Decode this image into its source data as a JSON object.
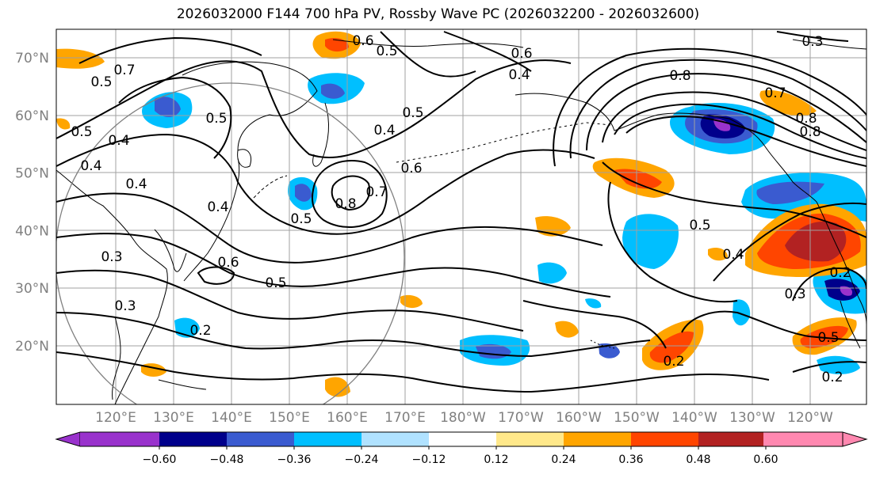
{
  "title": "2026032000 F144 700 hPa PV, Rossby Wave PC (2026032200 - 2026032600)",
  "lat_labels": [
    {
      "lat": 70,
      "text": "70°N"
    },
    {
      "lat": 60,
      "text": "60°N"
    },
    {
      "lat": 50,
      "text": "50°N"
    },
    {
      "lat": 40,
      "text": "40°N"
    },
    {
      "lat": 30,
      "text": "30°N"
    },
    {
      "lat": 20,
      "text": "20°N"
    }
  ],
  "lon_labels": [
    "120°E",
    "130°E",
    "140°E",
    "150°E",
    "160°E",
    "170°E",
    "180°W",
    "170°W",
    "160°W",
    "150°W",
    "140°W",
    "130°W",
    "120°W"
  ],
  "contour_labels": [
    "0.6",
    "0.5",
    "0.5",
    "0.7",
    "0.6",
    "0.5",
    "0.4",
    "0.5",
    "0.4",
    "0.8",
    "0.7",
    "0.8",
    "0.8",
    "0.5",
    "0.4",
    "0.4",
    "0.4",
    "0.5",
    "0.4",
    "0.6",
    "0.8",
    "0.7",
    "0.3",
    "0.6",
    "0.5",
    "0.5",
    "0.4",
    "0.3",
    "0.3",
    "0.2",
    "0.2",
    "0.2",
    "0.3",
    "0.5",
    "0.2"
  ],
  "colorbar": {
    "ticks": [
      "−0.60",
      "−0.48",
      "−0.36",
      "−0.24",
      "−0.12",
      "0.12",
      "0.24",
      "0.36",
      "0.48",
      "0.60"
    ],
    "colors": [
      "#9932cc",
      "#00008b",
      "#3a5bd0",
      "#00bfff",
      "#b0e2ff",
      "#ffffff",
      "#ffe88a",
      "#ffa500",
      "#ff4500",
      "#b22222",
      "#ff88b0"
    ]
  },
  "legend_colors": {
    "coast": "#000000",
    "grid": "#a0a0a0",
    "contour": "#000000",
    "circle": "#808080"
  }
}
